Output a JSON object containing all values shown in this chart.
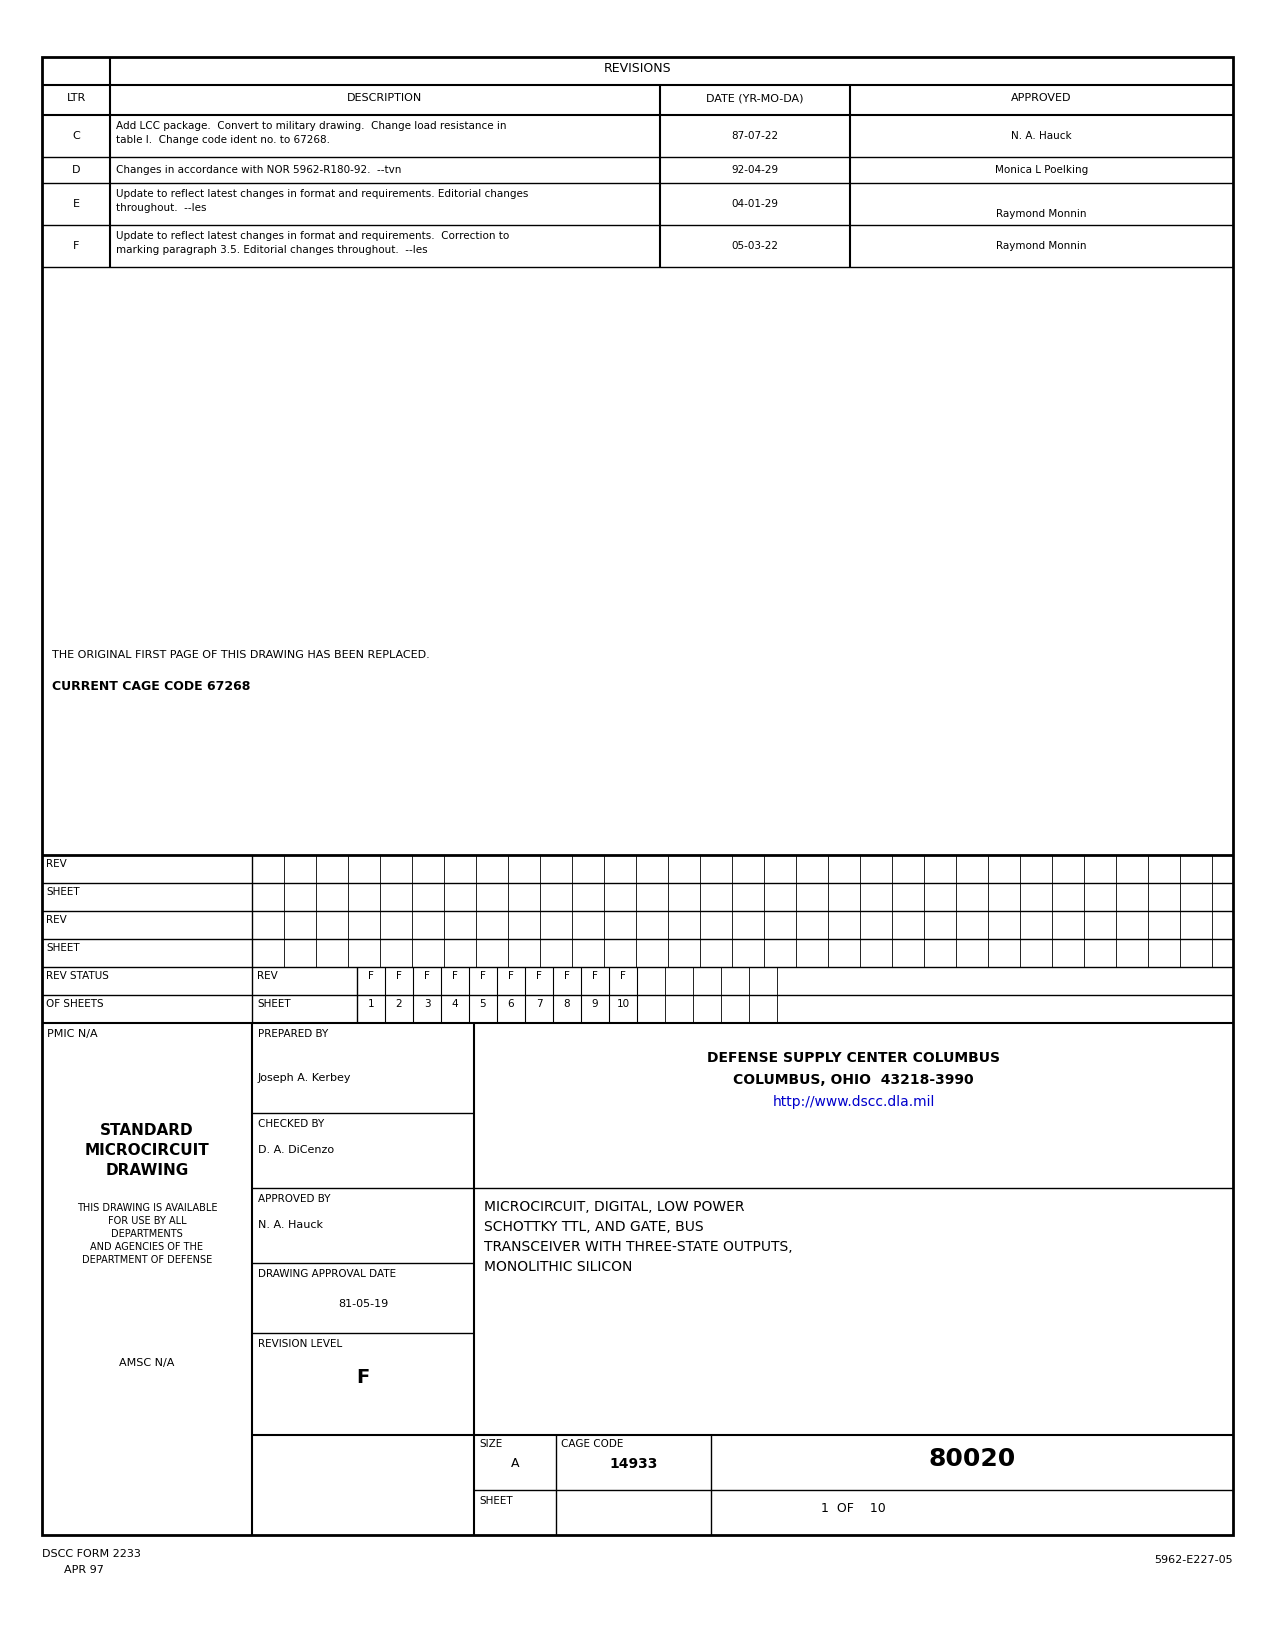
{
  "page_bg": "#ffffff",
  "border_color": "#000000",
  "blue_color": "#0000cc",
  "title_revisions": "REVISIONS",
  "col_ltr": "LTR",
  "col_desc": "DESCRIPTION",
  "col_date": "DATE (YR-MO-DA)",
  "col_approved": "APPROVED",
  "revisions": [
    {
      "ltr": "C",
      "desc_line1": "Add LCC package.  Convert to military drawing.  Change load resistance in",
      "desc_line2": "table I.  Change code ident no. to 67268.",
      "date": "87-07-22",
      "appr1": "N. A. Hauck",
      "appr2": ""
    },
    {
      "ltr": "D",
      "desc_line1": "Changes in accordance with NOR 5962-R180-92.  --tvn",
      "desc_line2": "",
      "date": "92-04-29",
      "appr1": "Monica L Poelking",
      "appr2": ""
    },
    {
      "ltr": "E",
      "desc_line1": "Update to reflect latest changes in format and requirements. Editorial changes",
      "desc_line2": "throughout.  --les",
      "date": "04-01-29",
      "appr1": "",
      "appr2": "Raymond Monnin"
    },
    {
      "ltr": "F",
      "desc_line1": "Update to reflect latest changes in format and requirements.  Correction to",
      "desc_line2": "marking paragraph 3.5. Editorial changes throughout.  --les",
      "date": "05-03-22",
      "appr1": "Raymond Monnin",
      "appr2": ""
    }
  ],
  "notice": "THE ORIGINAL FIRST PAGE OF THIS DRAWING HAS BEEN REPLACED.",
  "cage_label": "CURRENT CAGE CODE 67268",
  "grid_rev": [
    "F",
    "F",
    "F",
    "F",
    "F",
    "F",
    "F",
    "F",
    "F",
    "F"
  ],
  "grid_sheet": [
    "1",
    "2",
    "3",
    "4",
    "5",
    "6",
    "7",
    "8",
    "9",
    "10"
  ],
  "pmic": "PMIC N/A",
  "prep_label": "PREPARED BY",
  "prep_name": "Joseph A. Kerbey",
  "std_line1": "STANDARD",
  "std_line2": "MICROCIRCUIT",
  "std_line3": "DRAWING",
  "chk_label": "CHECKED BY",
  "chk_name": "D. A. DiCenzo",
  "apr_label": "APPROVED BY",
  "apr_name": "N. A. Hauck",
  "dad_label": "DRAWING APPROVAL DATE",
  "dad_date": "81-05-19",
  "avail1": "THIS DRAWING IS AVAILABLE",
  "avail2": "FOR USE BY ALL",
  "avail3": "DEPARTMENTS",
  "avail4": "AND AGENCIES OF THE",
  "avail5": "DEPARTMENT OF DEFENSE",
  "amsc": "AMSC N/A",
  "def1": "DEFENSE SUPPLY CENTER COLUMBUS",
  "def2": "COLUMBUS, OHIO  43218-3990",
  "def_url": "http://www.dscc.dla.mil",
  "desc1": "MICROCIRCUIT, DIGITAL, LOW POWER",
  "desc2": "SCHOTTKY TTL, AND GATE, BUS",
  "desc3": "TRANSCEIVER WITH THREE-STATE OUTPUTS,",
  "desc4": "MONOLITHIC SILICON",
  "rev_level_label": "REVISION LEVEL",
  "rev_level": "F",
  "size_label": "SIZE",
  "size_val": "A",
  "cage_label2": "CAGE CODE",
  "cage_val": "14933",
  "doc_num": "80020",
  "sheet_label": "SHEET",
  "sheet_val": "1  OF    10",
  "form_label": "DSCC FORM 2233",
  "form_date": "APR 97",
  "doc_ref": "5962-E227-05"
}
